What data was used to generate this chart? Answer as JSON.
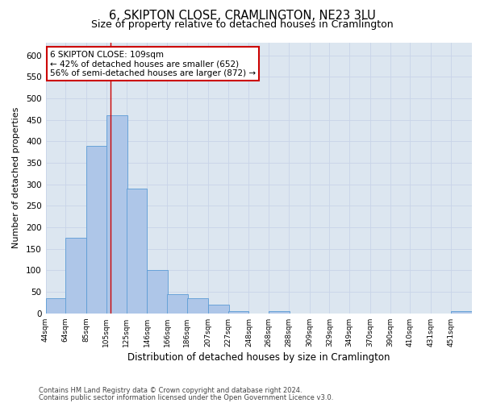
{
  "title1": "6, SKIPTON CLOSE, CRAMLINGTON, NE23 3LU",
  "title2": "Size of property relative to detached houses in Cramlington",
  "xlabel": "Distribution of detached houses by size in Cramlington",
  "ylabel": "Number of detached properties",
  "annotation_title": "6 SKIPTON CLOSE: 109sqm",
  "annotation_line1": "← 42% of detached houses are smaller (652)",
  "annotation_line2": "56% of semi-detached houses are larger (872) →",
  "footer1": "Contains HM Land Registry data © Crown copyright and database right 2024.",
  "footer2": "Contains public sector information licensed under the Open Government Licence v3.0.",
  "property_size": 109,
  "bar_left_edges": [
    44,
    64,
    85,
    105,
    125,
    146,
    166,
    186,
    207,
    227,
    248,
    268,
    288,
    309,
    329,
    349,
    370,
    390,
    410,
    431,
    451
  ],
  "bar_heights": [
    35,
    175,
    390,
    460,
    290,
    100,
    45,
    35,
    20,
    5,
    0,
    5,
    0,
    0,
    0,
    0,
    0,
    0,
    0,
    0,
    5
  ],
  "bin_width": 21,
  "bar_color": "#aec6e8",
  "bar_edge_color": "#5b9bd5",
  "vline_color": "#cc0000",
  "vline_x": 109,
  "annotation_box_color": "#ffffff",
  "annotation_box_edge": "#cc0000",
  "grid_color": "#c8d4e8",
  "bg_color": "#dce6f0",
  "ylim": [
    0,
    630
  ],
  "yticks": [
    0,
    50,
    100,
    150,
    200,
    250,
    300,
    350,
    400,
    450,
    500,
    550,
    600
  ],
  "title1_fontsize": 10.5,
  "title2_fontsize": 9
}
